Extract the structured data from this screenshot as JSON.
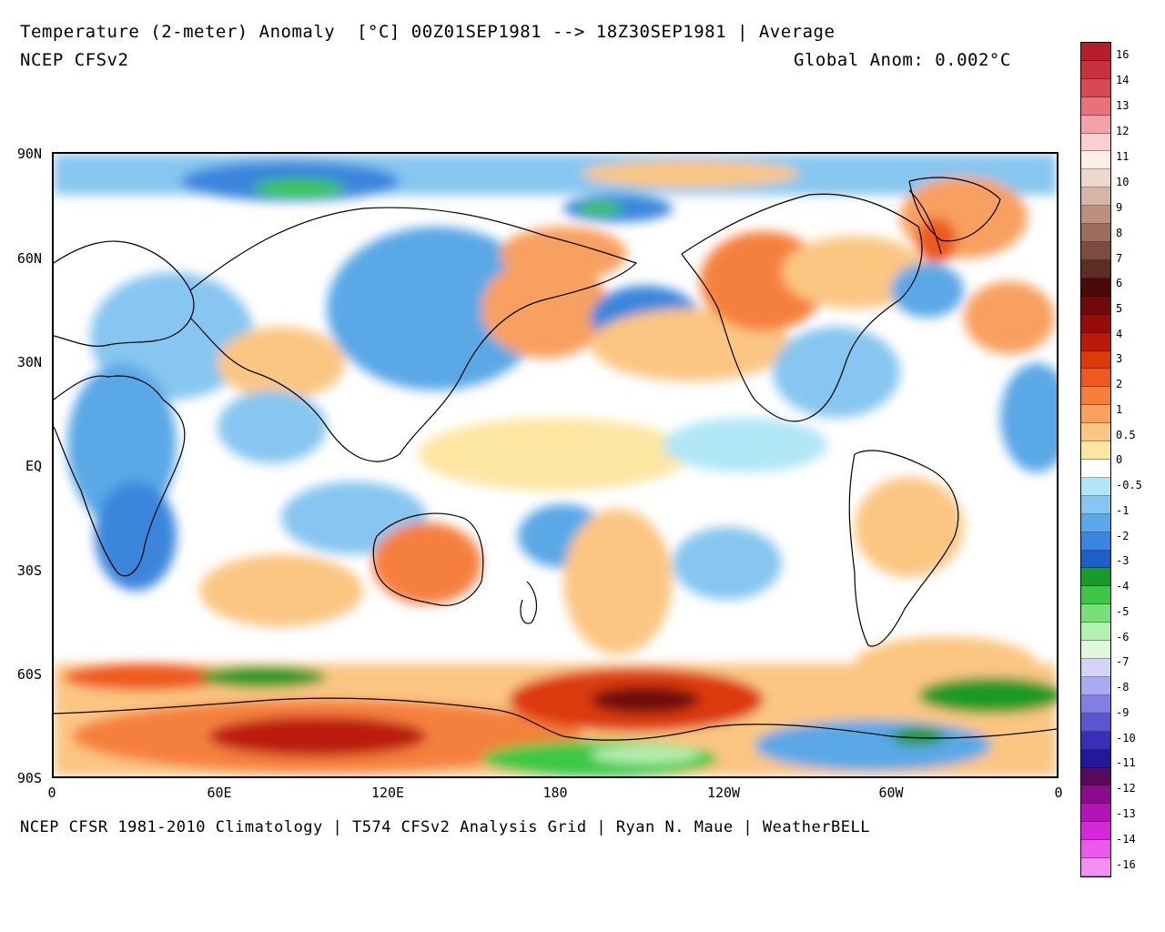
{
  "header": {
    "title": "Temperature (2-meter) Anomaly  [°C] 00Z01SEP1981 --> 18Z30SEP1981 | Average",
    "model": "NCEP CFSv2",
    "global_anom": "Global Anom: 0.002°C"
  },
  "footer": {
    "credits": "NCEP CFSR 1981-2010 Climatology | T574 CFSv2 Analysis Grid | Ryan N. Maue | WeatherBELL"
  },
  "axes": {
    "lat_labels": [
      "90N",
      "60N",
      "30N",
      "EQ",
      "30S",
      "60S",
      "90S"
    ],
    "lon_labels": [
      "0",
      "60E",
      "120E",
      "180",
      "120W",
      "60W",
      "0"
    ]
  },
  "colorbar": {
    "labels": [
      "16",
      "14",
      "13",
      "12",
      "11",
      "10",
      "9",
      "8",
      "7",
      "6",
      "5",
      "4",
      "3",
      "2",
      "1",
      "0.5",
      "0",
      "-0.5",
      "-1",
      "-2",
      "-3",
      "-4",
      "-5",
      "-6",
      "-7",
      "-8",
      "-9",
      "-10",
      "-11",
      "-12",
      "-13",
      "-14",
      "-16"
    ],
    "colors": [
      "#b51e2a",
      "#c8323c",
      "#d84a52",
      "#e6727a",
      "#f2a2a8",
      "#fbd0d2",
      "#fdeee8",
      "#ecd8cc",
      "#d6b4a8",
      "#bb9081",
      "#9c6c5e",
      "#7d4c40",
      "#5c2e24",
      "#4a0a0a",
      "#700a0a",
      "#960c0c",
      "#bb1a08",
      "#dc3a08",
      "#ee5a1e",
      "#f5803c",
      "#f8a05e",
      "#fbc682",
      "#fde6a2",
      "#ffffff",
      "#b0e6f6",
      "#86c6f0",
      "#5aa8e6",
      "#3a86dc",
      "#1e5ec8",
      "#1a9a28",
      "#3cc846",
      "#78e078",
      "#b4f0b0",
      "#e0f8dc",
      "#d4d4f8",
      "#aaaaf0",
      "#8080e0",
      "#5a56d0",
      "#3a30b8",
      "#22189a",
      "#5a0a5a",
      "#8c0a8c",
      "#b414b4",
      "#d628d6",
      "#ec5aec",
      "#f490f4"
    ],
    "levels_note": ""
  }
}
